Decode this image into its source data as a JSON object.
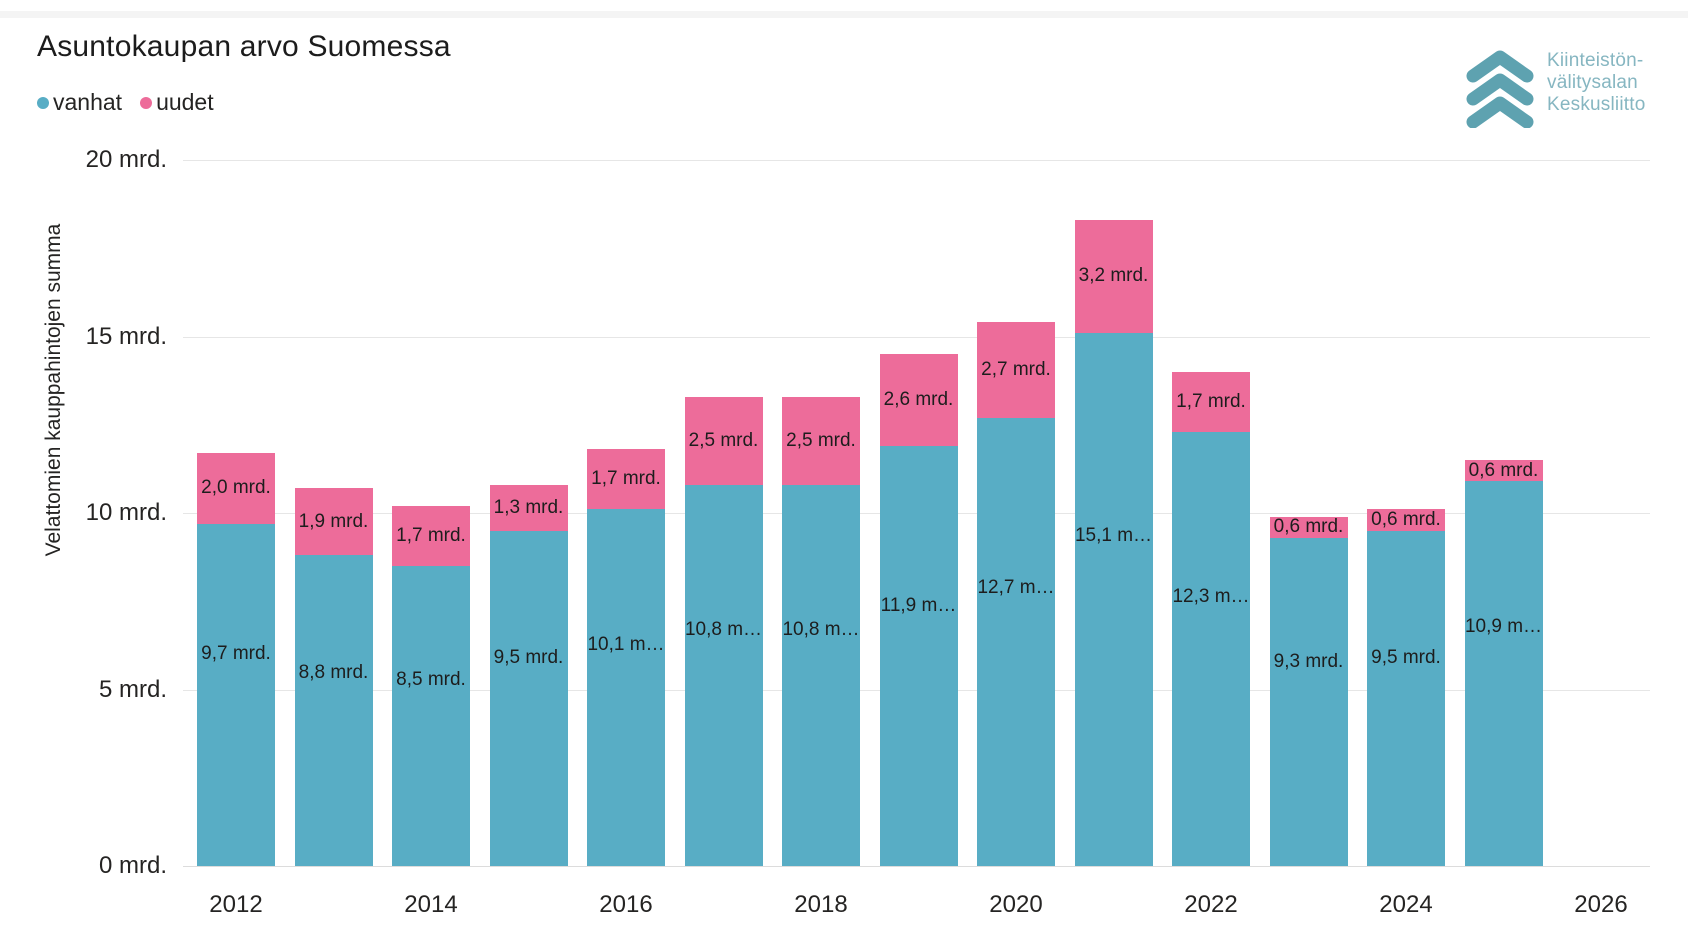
{
  "title": "Asuntokaupan arvo Suomessa",
  "legend": {
    "items": [
      {
        "label": "vanhat",
        "color": "#58ADC5"
      },
      {
        "label": "uudet",
        "color": "#ED6C9A"
      }
    ]
  },
  "logo": {
    "lines": [
      "Kiinteistön-",
      "välitysalan",
      "Keskusliitto"
    ],
    "mark_color": "#5EA2B0",
    "text_color": "#86B6C1"
  },
  "y_axis": {
    "title": "Velattomien kauppahintojen summa",
    "ticks": [
      {
        "label": "0 mrd.",
        "value": 0
      },
      {
        "label": "5 mrd.",
        "value": 5
      },
      {
        "label": "10 mrd.",
        "value": 10
      },
      {
        "label": "15 mrd.",
        "value": 15
      },
      {
        "label": "20 mrd.",
        "value": 20
      }
    ]
  },
  "x_axis": {
    "ticks": [
      {
        "label": "2012",
        "year": 2012
      },
      {
        "label": "2014",
        "year": 2014
      },
      {
        "label": "2016",
        "year": 2016
      },
      {
        "label": "2018",
        "year": 2018
      },
      {
        "label": "2020",
        "year": 2020
      },
      {
        "label": "2022",
        "year": 2022
      },
      {
        "label": "2024",
        "year": 2024
      },
      {
        "label": "2026",
        "year": 2026
      }
    ]
  },
  "chart_data": {
    "type": "bar",
    "stacked": true,
    "title": "Asuntokaupan arvo Suomessa",
    "categories": [
      2012,
      2013,
      2014,
      2015,
      2016,
      2017,
      2018,
      2019,
      2020,
      2021,
      2022,
      2023,
      2024,
      2025
    ],
    "series": [
      {
        "name": "vanhat",
        "color": "#58ADC5",
        "values": [
          9.7,
          8.8,
          8.5,
          9.5,
          10.1,
          10.8,
          10.8,
          11.9,
          12.7,
          15.1,
          12.3,
          9.3,
          9.5,
          10.9
        ],
        "labels": [
          "9,7 mrd.",
          "8,8 mrd.",
          "8,5 mrd.",
          "9,5 mrd.",
          "10,1 m…",
          "10,8 m…",
          "10,8 m…",
          "11,9 m…",
          "12,7 m…",
          "15,1 m…",
          "12,3 m…",
          "9,3 mrd.",
          "9,5 mrd.",
          "10,9 m…"
        ]
      },
      {
        "name": "uudet",
        "color": "#ED6C9A",
        "values": [
          2.0,
          1.9,
          1.7,
          1.3,
          1.7,
          2.5,
          2.5,
          2.6,
          2.7,
          3.2,
          1.7,
          0.6,
          0.6,
          0.6
        ],
        "labels": [
          "2,0 mrd.",
          "1,9 mrd.",
          "1,7 mrd.",
          "1,3 mrd.",
          "1,7 mrd.",
          "2,5 mrd.",
          "2,5 mrd.",
          "2,6 mrd.",
          "2,7 mrd.",
          "3,2 mrd.",
          "1,7 mrd.",
          "0,6 mrd.",
          "0,6 mrd.",
          "0,6 mrd."
        ]
      }
    ],
    "xlabel": "",
    "ylabel": "Velattomien kauppahintojen summa",
    "ylim": [
      0,
      20
    ],
    "unit": "mrd.",
    "grid": true,
    "legend_position": "top-left"
  }
}
